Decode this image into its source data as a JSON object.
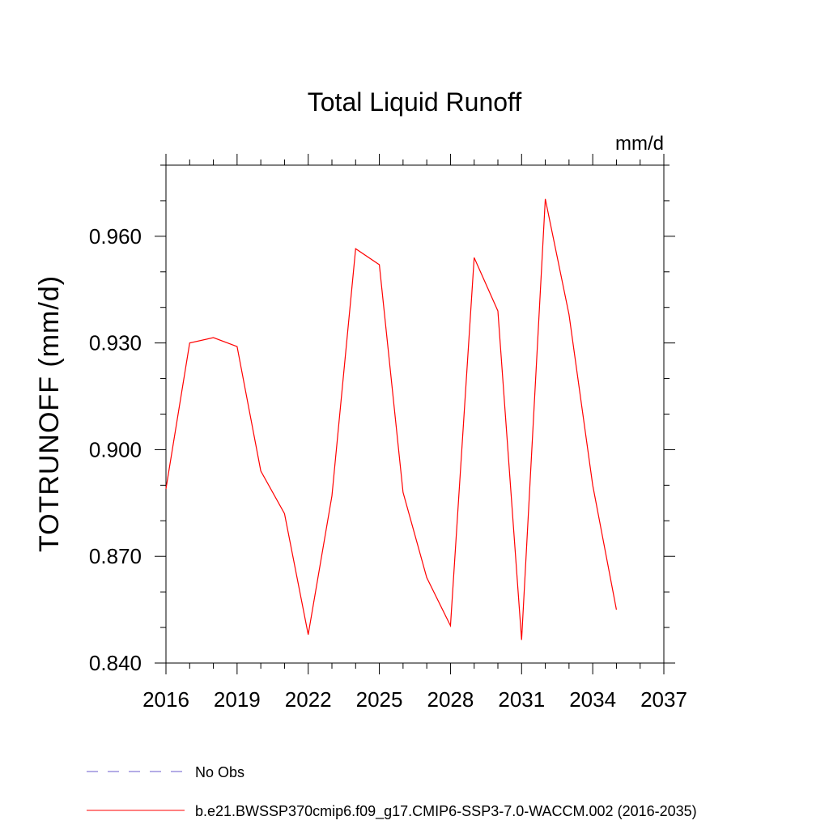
{
  "chart_data": {
    "type": "line",
    "title": "Total Liquid Runoff",
    "units_label": "mm/d",
    "ylabel": "TOTRUNOFF  (mm/d)",
    "xlabel": "",
    "xlim": [
      2016,
      2037
    ],
    "ylim": [
      0.84,
      0.98
    ],
    "x_ticks": [
      2016,
      2019,
      2022,
      2025,
      2028,
      2031,
      2034,
      2037
    ],
    "x_tick_labels": [
      "2016",
      "2019",
      "2022",
      "2025",
      "2028",
      "2031",
      "2034",
      "2037"
    ],
    "y_ticks": [
      0.84,
      0.87,
      0.9,
      0.93,
      0.96
    ],
    "y_tick_labels": [
      "0.840",
      "0.870",
      "0.900",
      "0.930",
      "0.960"
    ],
    "grid": false,
    "legend_position": "bottom",
    "series": [
      {
        "name": "No Obs",
        "color": "#6a5acd",
        "dash": "dashed",
        "x": [],
        "values": []
      },
      {
        "name": "b.e21.BWSSP370cmip6.f09_g17.CMIP6-SSP3-7.0-WACCM.002 (2016-2035)",
        "color": "#ff0000",
        "dash": "solid",
        "x": [
          2016,
          2017,
          2018,
          2019,
          2020,
          2021,
          2022,
          2023,
          2024,
          2025,
          2026,
          2027,
          2028,
          2029,
          2030,
          2031,
          2032,
          2033,
          2034,
          2035
        ],
        "values": [
          0.889,
          0.93,
          0.9315,
          0.929,
          0.894,
          0.882,
          0.848,
          0.887,
          0.9565,
          0.952,
          0.888,
          0.864,
          0.8505,
          0.954,
          0.939,
          0.8465,
          0.9705,
          0.938,
          0.89,
          0.855
        ]
      }
    ]
  }
}
